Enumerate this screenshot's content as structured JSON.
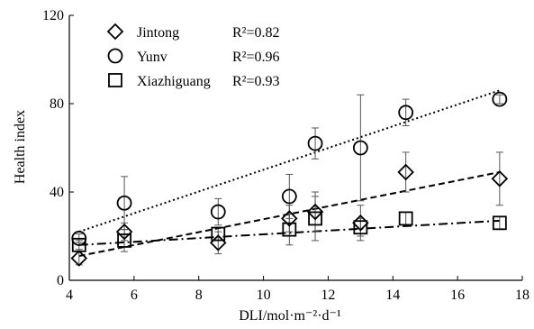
{
  "chart_data": {
    "type": "scatter",
    "title": "",
    "xlabel": "DLI/mol·m⁻²·d⁻¹",
    "ylabel": "Health index",
    "xlim": [
      4,
      18
    ],
    "ylim": [
      0,
      120
    ],
    "x_ticks": [
      4,
      6,
      8,
      10,
      12,
      14,
      16,
      18
    ],
    "y_ticks": [
      0,
      40,
      80,
      120
    ],
    "grid": false,
    "legend_position": "top-left",
    "series": [
      {
        "name": "Jintong",
        "marker": "diamond",
        "r2_label": "R²=0.82",
        "fit_line": "dashed",
        "fit_endpoints": [
          [
            4.3,
            11
          ],
          [
            17.3,
            49
          ]
        ],
        "points": [
          {
            "x": 4.3,
            "y": 10,
            "err": 3
          },
          {
            "x": 5.7,
            "y": 22,
            "err": 4
          },
          {
            "x": 8.6,
            "y": 17,
            "err": 5
          },
          {
            "x": 10.8,
            "y": 28,
            "err": 6
          },
          {
            "x": 11.6,
            "y": 31,
            "err": 9
          },
          {
            "x": 13.0,
            "y": 26,
            "err": 8
          },
          {
            "x": 14.4,
            "y": 49,
            "err": 9
          },
          {
            "x": 17.3,
            "y": 46,
            "err": 12
          }
        ]
      },
      {
        "name": "Yunv",
        "marker": "circle",
        "r2_label": "R²=0.96",
        "fit_line": "dotted",
        "fit_endpoints": [
          [
            4.3,
            22
          ],
          [
            17.3,
            86
          ]
        ],
        "points": [
          {
            "x": 4.3,
            "y": 19,
            "err": 2
          },
          {
            "x": 5.7,
            "y": 35,
            "err": 12
          },
          {
            "x": 8.6,
            "y": 31,
            "err": 6
          },
          {
            "x": 10.8,
            "y": 38,
            "err": 10
          },
          {
            "x": 11.6,
            "y": 62,
            "err": 7
          },
          {
            "x": 13.0,
            "y": 60,
            "err": 24
          },
          {
            "x": 14.4,
            "y": 76,
            "err": 6
          },
          {
            "x": 17.3,
            "y": 82,
            "err": 2
          }
        ]
      },
      {
        "name": "Xiazhiguang",
        "marker": "square",
        "r2_label": "R²=0.93",
        "fit_line": "dash-dot",
        "fit_endpoints": [
          [
            4.3,
            16
          ],
          [
            17.3,
            27
          ]
        ],
        "points": [
          {
            "x": 4.3,
            "y": 16,
            "err": 2
          },
          {
            "x": 5.7,
            "y": 18,
            "err": 5
          },
          {
            "x": 8.6,
            "y": 21,
            "err": 3
          },
          {
            "x": 10.8,
            "y": 23,
            "err": 7
          },
          {
            "x": 11.6,
            "y": 28,
            "err": 10
          },
          {
            "x": 13.0,
            "y": 24,
            "err": 4
          },
          {
            "x": 14.4,
            "y": 28,
            "err": 3
          },
          {
            "x": 17.3,
            "y": 26,
            "err": 3
          }
        ]
      }
    ]
  }
}
